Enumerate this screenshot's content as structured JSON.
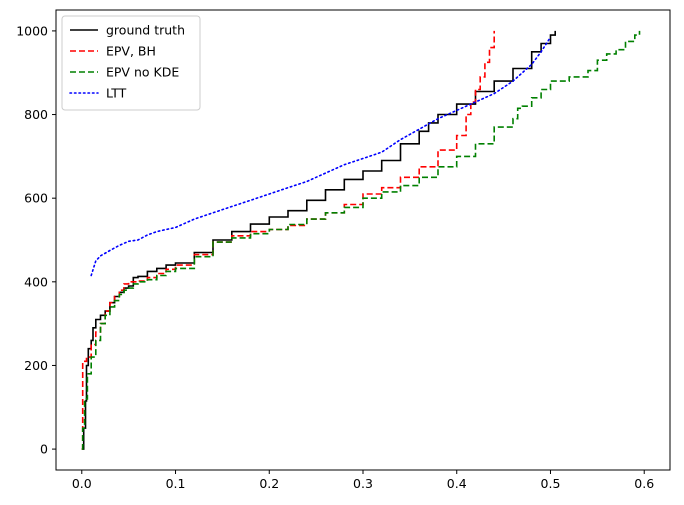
{
  "chart_data": {
    "type": "line",
    "title": "",
    "xlabel": "",
    "ylabel": "",
    "xlim": [
      -0.0275,
      0.6275
    ],
    "ylim": [
      -50,
      1050
    ],
    "xticks": [
      0.0,
      0.1,
      0.2,
      0.3,
      0.4,
      0.5,
      0.6
    ],
    "xtick_labels": [
      "0.0",
      "0.1",
      "0.2",
      "0.3",
      "0.4",
      "0.5",
      "0.6"
    ],
    "yticks": [
      0,
      200,
      400,
      600,
      800,
      1000
    ],
    "ytick_labels": [
      "0",
      "200",
      "400",
      "600",
      "800",
      "1000"
    ],
    "grid": false,
    "legend_position": "top-left",
    "series": [
      {
        "name": "ground truth",
        "color": "#000000",
        "style": "solid",
        "step": true,
        "points": [
          [
            0,
            0
          ],
          [
            0.002,
            50
          ],
          [
            0.004,
            115
          ],
          [
            0.005,
            200
          ],
          [
            0.007,
            240
          ],
          [
            0.01,
            260
          ],
          [
            0.012,
            290
          ],
          [
            0.015,
            310
          ],
          [
            0.02,
            320
          ],
          [
            0.025,
            330
          ],
          [
            0.03,
            350
          ],
          [
            0.035,
            365
          ],
          [
            0.04,
            375
          ],
          [
            0.045,
            385
          ],
          [
            0.05,
            390
          ],
          [
            0.055,
            410
          ],
          [
            0.06,
            413
          ],
          [
            0.07,
            425
          ],
          [
            0.08,
            432
          ],
          [
            0.09,
            440
          ],
          [
            0.1,
            445
          ],
          [
            0.12,
            470
          ],
          [
            0.14,
            500
          ],
          [
            0.16,
            520
          ],
          [
            0.18,
            538
          ],
          [
            0.2,
            555
          ],
          [
            0.22,
            570
          ],
          [
            0.24,
            595
          ],
          [
            0.26,
            620
          ],
          [
            0.28,
            645
          ],
          [
            0.3,
            665
          ],
          [
            0.32,
            690
          ],
          [
            0.34,
            730
          ],
          [
            0.36,
            760
          ],
          [
            0.37,
            780
          ],
          [
            0.38,
            800
          ],
          [
            0.4,
            825
          ],
          [
            0.42,
            855
          ],
          [
            0.44,
            880
          ],
          [
            0.46,
            910
          ],
          [
            0.48,
            950
          ],
          [
            0.49,
            970
          ],
          [
            0.5,
            990
          ],
          [
            0.505,
            1000
          ]
        ]
      },
      {
        "name": "EPV, BH",
        "color": "#ff0000",
        "style": "dashed",
        "step": true,
        "points": [
          [
            0,
            0
          ],
          [
            0.001,
            210
          ],
          [
            0.005,
            220
          ],
          [
            0.01,
            250
          ],
          [
            0.015,
            280
          ],
          [
            0.02,
            300
          ],
          [
            0.025,
            330
          ],
          [
            0.03,
            350
          ],
          [
            0.035,
            365
          ],
          [
            0.04,
            380
          ],
          [
            0.045,
            395
          ],
          [
            0.05,
            400
          ],
          [
            0.06,
            402
          ],
          [
            0.07,
            410
          ],
          [
            0.08,
            420
          ],
          [
            0.09,
            430
          ],
          [
            0.1,
            440
          ],
          [
            0.12,
            465
          ],
          [
            0.14,
            495
          ],
          [
            0.16,
            510
          ],
          [
            0.18,
            520
          ],
          [
            0.2,
            525
          ],
          [
            0.22,
            535
          ],
          [
            0.24,
            550
          ],
          [
            0.26,
            565
          ],
          [
            0.28,
            585
          ],
          [
            0.3,
            610
          ],
          [
            0.32,
            625
          ],
          [
            0.34,
            650
          ],
          [
            0.36,
            675
          ],
          [
            0.38,
            715
          ],
          [
            0.4,
            750
          ],
          [
            0.41,
            800
          ],
          [
            0.415,
            830
          ],
          [
            0.42,
            860
          ],
          [
            0.425,
            890
          ],
          [
            0.43,
            925
          ],
          [
            0.435,
            960
          ],
          [
            0.44,
            1000
          ]
        ]
      },
      {
        "name": "EPV no KDE",
        "color": "#008000",
        "style": "dashed",
        "step": true,
        "points": [
          [
            0,
            0
          ],
          [
            0.001,
            50
          ],
          [
            0.003,
            120
          ],
          [
            0.006,
            180
          ],
          [
            0.01,
            220
          ],
          [
            0.015,
            260
          ],
          [
            0.02,
            300
          ],
          [
            0.025,
            320
          ],
          [
            0.03,
            340
          ],
          [
            0.035,
            355
          ],
          [
            0.04,
            370
          ],
          [
            0.045,
            380
          ],
          [
            0.05,
            385
          ],
          [
            0.055,
            395
          ],
          [
            0.06,
            400
          ],
          [
            0.07,
            405
          ],
          [
            0.08,
            415
          ],
          [
            0.09,
            425
          ],
          [
            0.1,
            432
          ],
          [
            0.12,
            460
          ],
          [
            0.14,
            495
          ],
          [
            0.16,
            505
          ],
          [
            0.18,
            515
          ],
          [
            0.2,
            525
          ],
          [
            0.22,
            537
          ],
          [
            0.24,
            550
          ],
          [
            0.26,
            565
          ],
          [
            0.28,
            578
          ],
          [
            0.3,
            600
          ],
          [
            0.32,
            615
          ],
          [
            0.34,
            630
          ],
          [
            0.36,
            650
          ],
          [
            0.38,
            675
          ],
          [
            0.4,
            700
          ],
          [
            0.42,
            730
          ],
          [
            0.44,
            770
          ],
          [
            0.46,
            790
          ],
          [
            0.465,
            815
          ],
          [
            0.47,
            820
          ],
          [
            0.48,
            840
          ],
          [
            0.49,
            860
          ],
          [
            0.5,
            880
          ],
          [
            0.52,
            890
          ],
          [
            0.54,
            905
          ],
          [
            0.55,
            930
          ],
          [
            0.56,
            945
          ],
          [
            0.57,
            955
          ],
          [
            0.58,
            975
          ],
          [
            0.59,
            990
          ],
          [
            0.595,
            1000
          ]
        ]
      },
      {
        "name": "LTT",
        "color": "#0000ff",
        "style": "dotted",
        "step": false,
        "points": [
          [
            0.01,
            415
          ],
          [
            0.015,
            450
          ],
          [
            0.02,
            462
          ],
          [
            0.03,
            475
          ],
          [
            0.04,
            487
          ],
          [
            0.05,
            497
          ],
          [
            0.06,
            500
          ],
          [
            0.07,
            512
          ],
          [
            0.08,
            520
          ],
          [
            0.09,
            525
          ],
          [
            0.1,
            530
          ],
          [
            0.12,
            550
          ],
          [
            0.14,
            565
          ],
          [
            0.16,
            580
          ],
          [
            0.18,
            595
          ],
          [
            0.2,
            610
          ],
          [
            0.22,
            625
          ],
          [
            0.24,
            640
          ],
          [
            0.26,
            660
          ],
          [
            0.28,
            680
          ],
          [
            0.3,
            695
          ],
          [
            0.32,
            710
          ],
          [
            0.34,
            740
          ],
          [
            0.36,
            765
          ],
          [
            0.38,
            790
          ],
          [
            0.4,
            810
          ],
          [
            0.42,
            830
          ],
          [
            0.44,
            850
          ],
          [
            0.46,
            880
          ],
          [
            0.48,
            920
          ],
          [
            0.49,
            950
          ],
          [
            0.5,
            985
          ]
        ]
      }
    ]
  }
}
